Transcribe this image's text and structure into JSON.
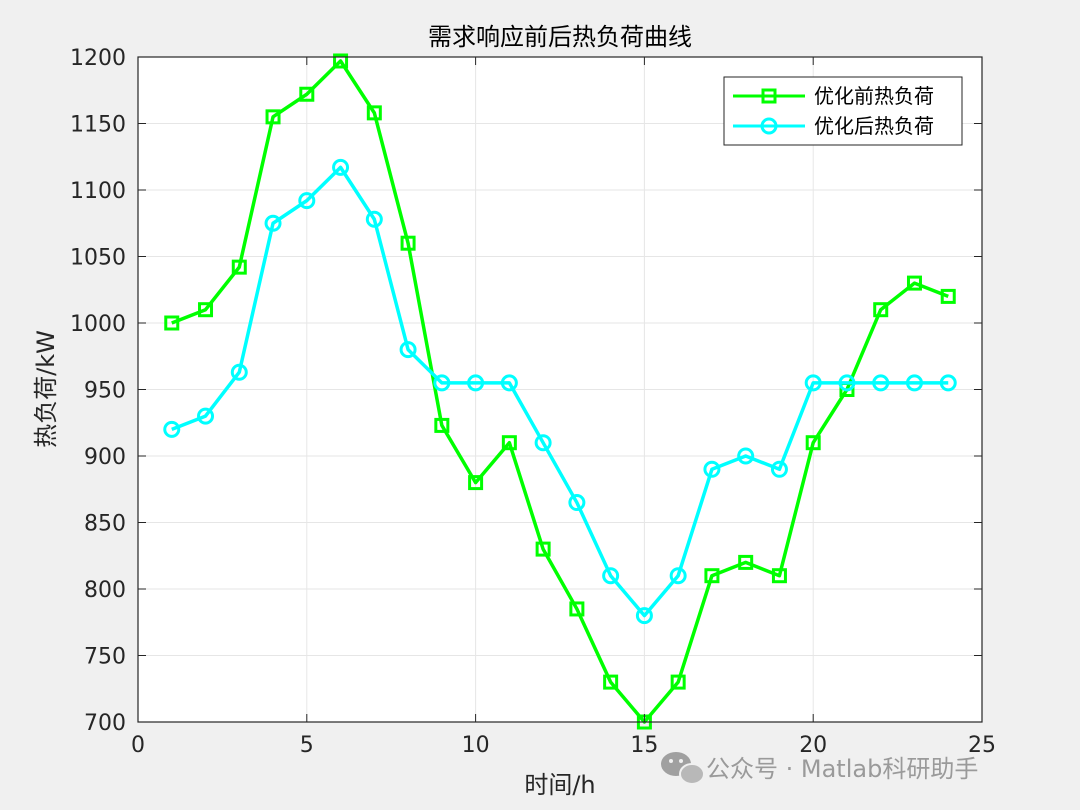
{
  "chart_data": {
    "type": "line",
    "title": "需求响应前后热负荷曲线",
    "xlabel": "时间/h",
    "ylabel": "热负荷/kW",
    "xlim": [
      0,
      25
    ],
    "ylim": [
      700,
      1200
    ],
    "xticks": [
      0,
      5,
      10,
      15,
      20,
      25
    ],
    "yticks": [
      700,
      750,
      800,
      850,
      900,
      950,
      1000,
      1050,
      1100,
      1150,
      1200
    ],
    "grid": true,
    "legend_position": "top-right",
    "x": [
      1,
      2,
      3,
      4,
      5,
      6,
      7,
      8,
      9,
      10,
      11,
      12,
      13,
      14,
      15,
      16,
      17,
      18,
      19,
      20,
      21,
      22,
      23,
      24
    ],
    "series": [
      {
        "name": "优化前热负荷",
        "color": "#00ff00",
        "marker": "square",
        "values": [
          1000,
          1010,
          1042,
          1155,
          1172,
          1197,
          1158,
          1060,
          923,
          880,
          910,
          830,
          785,
          730,
          700,
          730,
          810,
          820,
          810,
          910,
          950,
          1010,
          1030,
          1020
        ]
      },
      {
        "name": "优化后热负荷",
        "color": "#00ffff",
        "marker": "circle",
        "values": [
          920,
          930,
          963,
          1075,
          1092,
          1117,
          1078,
          980,
          955,
          955,
          955,
          910,
          865,
          810,
          780,
          810,
          890,
          900,
          890,
          955,
          955,
          955,
          955,
          955
        ]
      }
    ]
  },
  "watermark": {
    "text": "公众号 · Matlab科研助手",
    "icon": "wechat-icon"
  }
}
